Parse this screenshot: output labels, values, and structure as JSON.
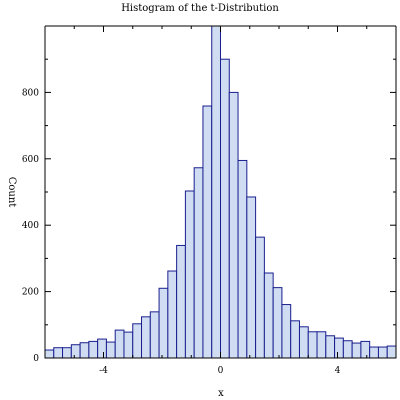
{
  "chart_data": {
    "type": "bar",
    "title": "Histogram of the t-Distribution",
    "xlabel": "x",
    "ylabel": "Count",
    "xlim": [
      -6,
      6
    ],
    "ylim": [
      0,
      1000
    ],
    "grid": false,
    "bin_width": 0.3,
    "x_ticks": [
      -4,
      0,
      4
    ],
    "x_tick_labels": [
      "-4",
      "0",
      "4"
    ],
    "y_ticks": [
      0,
      200,
      400,
      600,
      800
    ],
    "y_tick_labels": [
      "0",
      "200",
      "400",
      "600",
      "800"
    ],
    "bins": [
      {
        "x0": -6.0,
        "count": 24
      },
      {
        "x0": -5.7,
        "count": 31
      },
      {
        "x0": -5.4,
        "count": 31
      },
      {
        "x0": -5.1,
        "count": 40
      },
      {
        "x0": -4.8,
        "count": 46
      },
      {
        "x0": -4.5,
        "count": 50
      },
      {
        "x0": -4.2,
        "count": 57
      },
      {
        "x0": -3.9,
        "count": 48
      },
      {
        "x0": -3.6,
        "count": 84
      },
      {
        "x0": -3.3,
        "count": 78
      },
      {
        "x0": -3.0,
        "count": 103
      },
      {
        "x0": -2.7,
        "count": 124
      },
      {
        "x0": -2.4,
        "count": 139
      },
      {
        "x0": -2.1,
        "count": 210
      },
      {
        "x0": -1.8,
        "count": 262
      },
      {
        "x0": -1.5,
        "count": 339
      },
      {
        "x0": -1.2,
        "count": 503
      },
      {
        "x0": -0.9,
        "count": 573
      },
      {
        "x0": -0.6,
        "count": 759
      },
      {
        "x0": -0.3,
        "count": 1000
      },
      {
        "x0": 0.0,
        "count": 900
      },
      {
        "x0": 0.3,
        "count": 800
      },
      {
        "x0": 0.6,
        "count": 595
      },
      {
        "x0": 0.9,
        "count": 485
      },
      {
        "x0": 1.2,
        "count": 364
      },
      {
        "x0": 1.5,
        "count": 256
      },
      {
        "x0": 1.8,
        "count": 212
      },
      {
        "x0": 2.1,
        "count": 161
      },
      {
        "x0": 2.4,
        "count": 112
      },
      {
        "x0": 2.7,
        "count": 94
      },
      {
        "x0": 3.0,
        "count": 79
      },
      {
        "x0": 3.3,
        "count": 79
      },
      {
        "x0": 3.6,
        "count": 67
      },
      {
        "x0": 3.9,
        "count": 60
      },
      {
        "x0": 4.2,
        "count": 52
      },
      {
        "x0": 4.5,
        "count": 45
      },
      {
        "x0": 4.8,
        "count": 50
      },
      {
        "x0": 5.1,
        "count": 33
      },
      {
        "x0": 5.4,
        "count": 33
      },
      {
        "x0": 5.7,
        "count": 36
      }
    ],
    "colors": {
      "bar_fill": "#cfdcf1",
      "bar_stroke": "#1a1f8f",
      "axis": "#000000"
    }
  }
}
